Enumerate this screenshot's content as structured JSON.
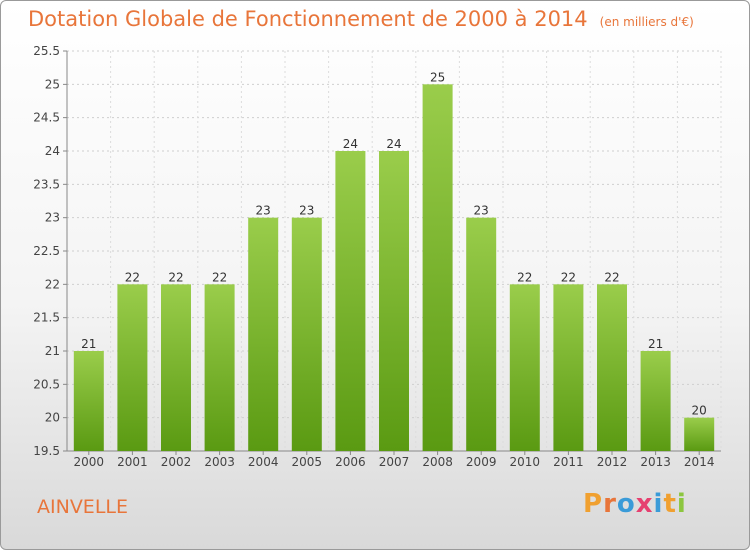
{
  "header": {
    "title": "Dotation Globale de Fonctionnement de 2000 à 2014",
    "unit": "(en milliers d'€)"
  },
  "footer": {
    "commune": "AINVELLE",
    "logo": [
      "P",
      "r",
      "o",
      "x",
      "i",
      "t",
      "i"
    ]
  },
  "colors": {
    "accent": "#e8753a",
    "bar_top": "#9acd4b",
    "bar_bottom": "#5a9a12",
    "logo": [
      "#f0a030",
      "#e8753a",
      "#3a9bd8",
      "#e64070",
      "#3a9bd8",
      "#f0a030",
      "#8cc63f"
    ]
  },
  "chart_data": {
    "type": "bar",
    "categories": [
      "2000",
      "2001",
      "2002",
      "2003",
      "2004",
      "2005",
      "2006",
      "2007",
      "2008",
      "2009",
      "2010",
      "2011",
      "2012",
      "2013",
      "2014"
    ],
    "values": [
      21,
      22,
      22,
      22,
      23,
      23,
      24,
      24,
      25,
      23,
      22,
      22,
      22,
      21,
      20
    ],
    "data_labels": [
      "21",
      "22",
      "22",
      "22",
      "23",
      "23",
      "24",
      "24",
      "25",
      "23",
      "22",
      "22",
      "22",
      "21",
      "20"
    ],
    "ylim": [
      19.5,
      25.5
    ],
    "yticks": [
      "19.5",
      "20",
      "20.5",
      "21",
      "21.5",
      "22",
      "22.5",
      "23",
      "23.5",
      "24",
      "24.5",
      "25",
      "25.5"
    ],
    "grid": true
  }
}
